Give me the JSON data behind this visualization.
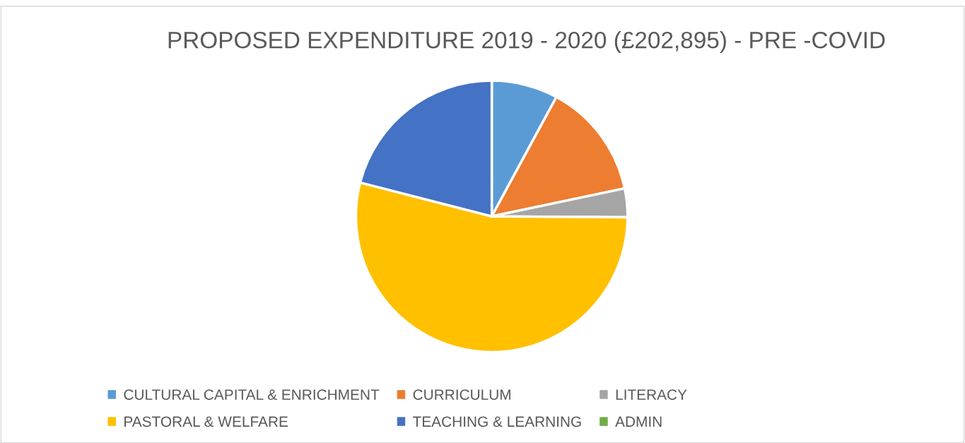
{
  "chart_data": {
    "type": "pie",
    "title": "PROPOSED EXPENDITURE 2019 - 2020 (£202,895) - PRE -COVID",
    "categories": [
      "CULTURAL CAPITAL & ENRICHMENT",
      "CURRICULUM",
      "LITERACY",
      "PASTORAL & WELFARE",
      "TEACHING & LEARNING",
      "ADMIN"
    ],
    "values": [
      7.9,
      13.8,
      3.4,
      53.9,
      21.0,
      0
    ],
    "colors": [
      "#5b9bd5",
      "#ed7d31",
      "#a5a5a5",
      "#ffc000",
      "#4472c4",
      "#70ad47"
    ],
    "legend": "bottom"
  }
}
